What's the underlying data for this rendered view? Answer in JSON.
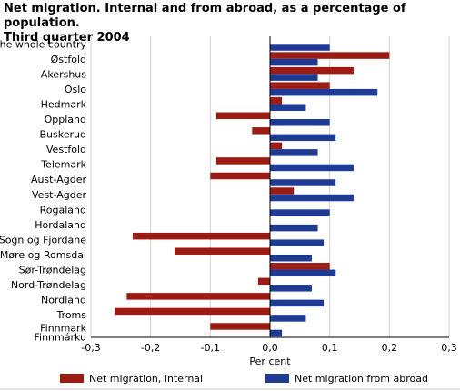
{
  "title_line1": "Net migration. Internal and from abroad, as a percentage of population.",
  "title_line2": "Third quarter 2004",
  "chart_data": {
    "type": "bar",
    "orientation": "horizontal",
    "title": "Net migration. Internal and from abroad, as a percentage of population. Third quarter 2004",
    "xlabel": "Per cent",
    "ylabel": "",
    "xlim": [
      -0.3,
      0.3
    ],
    "xticks": [
      "-0,3",
      "-0,2",
      "-0,1",
      "0,0",
      "0,1",
      "0,2",
      "0,3"
    ],
    "grid": "vertical",
    "legend_position": "bottom",
    "categories": [
      "The whole country",
      "Østfold",
      "Akershus",
      "Oslo",
      "Hedmark",
      "Oppland",
      "Buskerud",
      "Vestfold",
      "Telemark",
      "Aust-Agder",
      "Vest-Agder",
      "Rogaland",
      "Hordaland",
      "Sogn og Fjordane",
      "Møre og Romsdal",
      "Sør-Trøndelag",
      "Nord-Trøndelag",
      "Nordland",
      "Troms",
      "Finnmark\nFinnmárku"
    ],
    "series": [
      {
        "name": "Net migration, internal",
        "color": "#9e1b14",
        "values": [
          0,
          0.2,
          0.14,
          0.1,
          0.02,
          -0.09,
          -0.03,
          0.02,
          -0.09,
          -0.1,
          0.04,
          0,
          0,
          -0.23,
          -0.16,
          0.1,
          -0.02,
          -0.24,
          -0.26,
          -0.1
        ]
      },
      {
        "name": "Net migration from abroad",
        "color": "#1f3a93",
        "values": [
          0.1,
          0.08,
          0.08,
          0.18,
          0.06,
          0.1,
          0.11,
          0.08,
          0.14,
          0.11,
          0.14,
          0.1,
          0.08,
          0.09,
          0.07,
          0.11,
          0.07,
          0.09,
          0.06,
          0.02
        ]
      }
    ]
  }
}
